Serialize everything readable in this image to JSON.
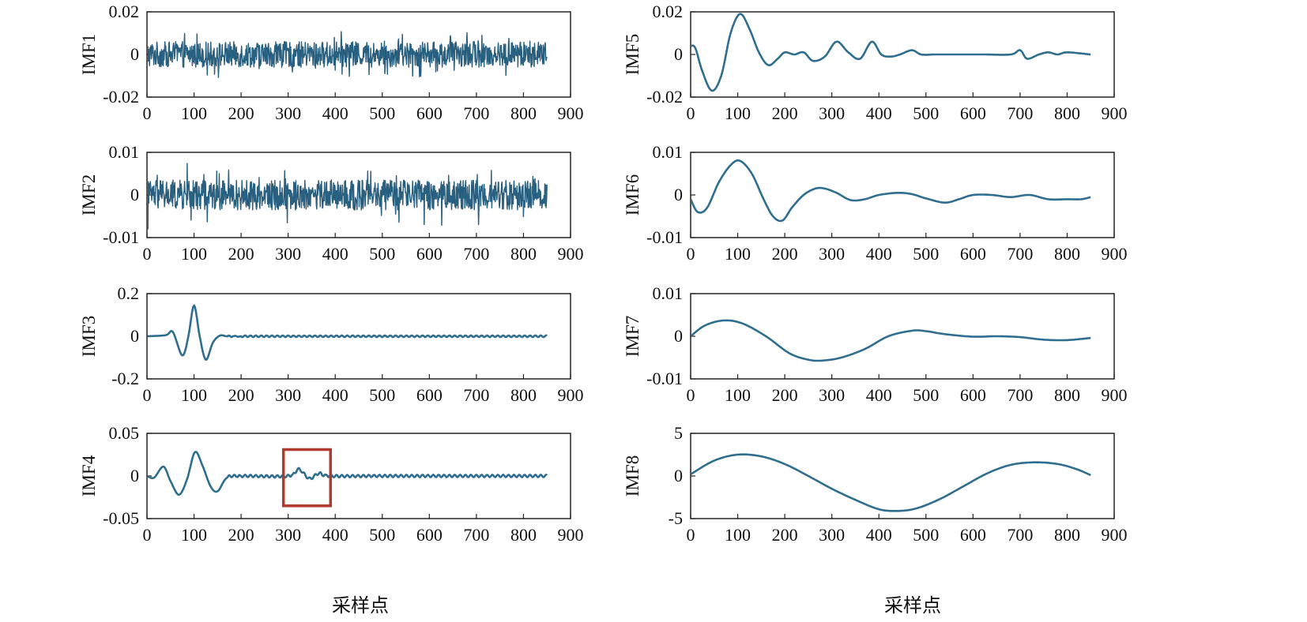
{
  "colors": {
    "signal": "#2f6e8e",
    "signal_dark": "#1f4f6e",
    "axis": "#222222",
    "highlight_box": "#b03a2e"
  },
  "xlabels": {
    "left": "采样点",
    "right": "采样点"
  },
  "chart_data": [
    {
      "type": "line",
      "ylabel": "IMF1",
      "xlim": [
        0,
        900
      ],
      "ylim": [
        -0.02,
        0.02
      ],
      "xticks": [
        "0",
        "100",
        "200",
        "300",
        "400",
        "500",
        "600",
        "700",
        "800",
        "900"
      ],
      "yticks": [
        "0.02",
        "0",
        "-0.02"
      ],
      "signal": "noise",
      "x_end": 850,
      "amplitude": 0.006,
      "peak": 0.011
    },
    {
      "type": "line",
      "ylabel": "IMF2",
      "xlim": [
        0,
        900
      ],
      "ylim": [
        -0.01,
        0.01
      ],
      "xticks": [
        "0",
        "100",
        "200",
        "300",
        "400",
        "500",
        "600",
        "700",
        "800",
        "900"
      ],
      "yticks": [
        "0.01",
        "0",
        "-0.01"
      ],
      "signal": "noise",
      "x_end": 850,
      "amplitude": 0.0035,
      "peak": 0.0075
    },
    {
      "type": "line",
      "ylabel": "IMF3",
      "xlim": [
        0,
        900
      ],
      "ylim": [
        -0.2,
        0.2
      ],
      "xticks": [
        "0",
        "100",
        "200",
        "300",
        "400",
        "500",
        "600",
        "700",
        "800",
        "900"
      ],
      "yticks": [
        "0.2",
        "0",
        "-0.2"
      ],
      "x": [
        0,
        40,
        55,
        75,
        88,
        100,
        112,
        125,
        140,
        155,
        170,
        200,
        400,
        600,
        850
      ],
      "y": [
        0,
        0.005,
        0.02,
        -0.09,
        0.0,
        0.145,
        0.0,
        -0.11,
        -0.03,
        0.003,
        0,
        0,
        0,
        0,
        0
      ]
    },
    {
      "type": "line",
      "ylabel": "IMF4",
      "xlim": [
        0,
        900
      ],
      "ylim": [
        -0.05,
        0.05
      ],
      "xticks": [
        "0",
        "100",
        "200",
        "300",
        "400",
        "500",
        "600",
        "700",
        "800",
        "900"
      ],
      "yticks": [
        "0.05",
        "0",
        "-0.05"
      ],
      "x": [
        0,
        15,
        35,
        50,
        68,
        85,
        102,
        118,
        135,
        150,
        170,
        200,
        300,
        322,
        345,
        365,
        390,
        500,
        700,
        850
      ],
      "y": [
        0,
        -0.002,
        0.011,
        -0.006,
        -0.022,
        -0.004,
        0.028,
        0.012,
        -0.012,
        -0.018,
        -0.002,
        0,
        0,
        0.008,
        -0.003,
        0.003,
        0,
        0,
        0,
        0
      ],
      "annotation": {
        "type": "box",
        "x": [
          290,
          390
        ],
        "y": [
          -0.035,
          0.031
        ]
      }
    },
    {
      "type": "line",
      "ylabel": "IMF5",
      "xlim": [
        0,
        900
      ],
      "ylim": [
        -0.02,
        0.02
      ],
      "xticks": [
        "0",
        "100",
        "200",
        "300",
        "400",
        "500",
        "600",
        "700",
        "800",
        "900"
      ],
      "yticks": [
        "0.02",
        "0",
        "-0.02"
      ],
      "x": [
        0,
        10,
        25,
        45,
        65,
        85,
        105,
        125,
        145,
        165,
        185,
        200,
        220,
        240,
        260,
        285,
        310,
        335,
        360,
        385,
        405,
        425,
        445,
        470,
        490,
        520,
        560,
        620,
        680,
        700,
        715,
        740,
        760,
        780,
        800,
        850
      ],
      "y": [
        0.004,
        0.003,
        -0.008,
        -0.017,
        -0.01,
        0.01,
        0.019,
        0.012,
        0.001,
        -0.005,
        -0.002,
        0.001,
        0.0,
        0.001,
        -0.003,
        -0.001,
        0.006,
        0.001,
        -0.002,
        0.006,
        0.0,
        -0.001,
        0.0,
        0.002,
        0.0,
        0.0,
        0.0,
        0.0,
        0.0,
        0.002,
        -0.002,
        0.0,
        0.001,
        0.0,
        0.001,
        0.0
      ]
    },
    {
      "type": "line",
      "ylabel": "IMF6",
      "xlim": [
        0,
        900
      ],
      "ylim": [
        -0.01,
        0.01
      ],
      "xticks": [
        "0",
        "100",
        "200",
        "300",
        "400",
        "500",
        "600",
        "700",
        "800",
        "900"
      ],
      "yticks": [
        "0.01",
        "0",
        "-0.01"
      ],
      "x": [
        0,
        15,
        35,
        60,
        85,
        105,
        130,
        155,
        175,
        195,
        215,
        240,
        265,
        285,
        310,
        340,
        370,
        400,
        440,
        470,
        500,
        540,
        570,
        600,
        640,
        680,
        720,
        760,
        800,
        830,
        850
      ],
      "y": [
        -0.001,
        -0.004,
        -0.003,
        0.003,
        0.007,
        0.008,
        0.005,
        -0.001,
        -0.005,
        -0.006,
        -0.003,
        0.0,
        0.0015,
        0.0015,
        0.0005,
        -0.0012,
        -0.001,
        0.0,
        0.0005,
        0.0002,
        -0.0008,
        -0.0018,
        -0.001,
        0.0,
        0.0,
        -0.0005,
        0.0,
        -0.001,
        -0.001,
        -0.001,
        -0.0005
      ]
    },
    {
      "type": "line",
      "ylabel": "IMF7",
      "xlim": [
        0,
        900
      ],
      "ylim": [
        -0.01,
        0.01
      ],
      "xticks": [
        "0",
        "100",
        "200",
        "300",
        "400",
        "500",
        "600",
        "700",
        "800",
        "900"
      ],
      "yticks": [
        "0.01",
        "0",
        "-0.01"
      ],
      "x": [
        0,
        30,
        70,
        110,
        160,
        210,
        250,
        280,
        320,
        370,
        420,
        470,
        500,
        540,
        600,
        650,
        700,
        750,
        800,
        850
      ],
      "y": [
        0.0,
        0.0025,
        0.0037,
        0.003,
        0.0,
        -0.004,
        -0.0055,
        -0.0057,
        -0.005,
        -0.003,
        0.0,
        0.0013,
        0.0012,
        0.0005,
        -0.0001,
        0.0,
        -0.0002,
        -0.0008,
        -0.0009,
        -0.0004
      ]
    },
    {
      "type": "line",
      "ylabel": "IMF8",
      "xlim": [
        0,
        900
      ],
      "ylim": [
        -5,
        5
      ],
      "xticks": [
        "0",
        "100",
        "200",
        "300",
        "400",
        "500",
        "600",
        "700",
        "800",
        "900"
      ],
      "yticks": [
        "5",
        "0",
        "-5"
      ],
      "x": [
        0,
        50,
        100,
        150,
        200,
        250,
        300,
        350,
        400,
        440,
        480,
        530,
        580,
        630,
        680,
        730,
        780,
        820,
        850
      ],
      "y": [
        0.2,
        1.8,
        2.5,
        2.3,
        1.4,
        0.0,
        -1.5,
        -2.8,
        -3.9,
        -4.1,
        -3.8,
        -2.7,
        -1.2,
        0.3,
        1.3,
        1.6,
        1.4,
        0.8,
        0.1
      ]
    }
  ]
}
